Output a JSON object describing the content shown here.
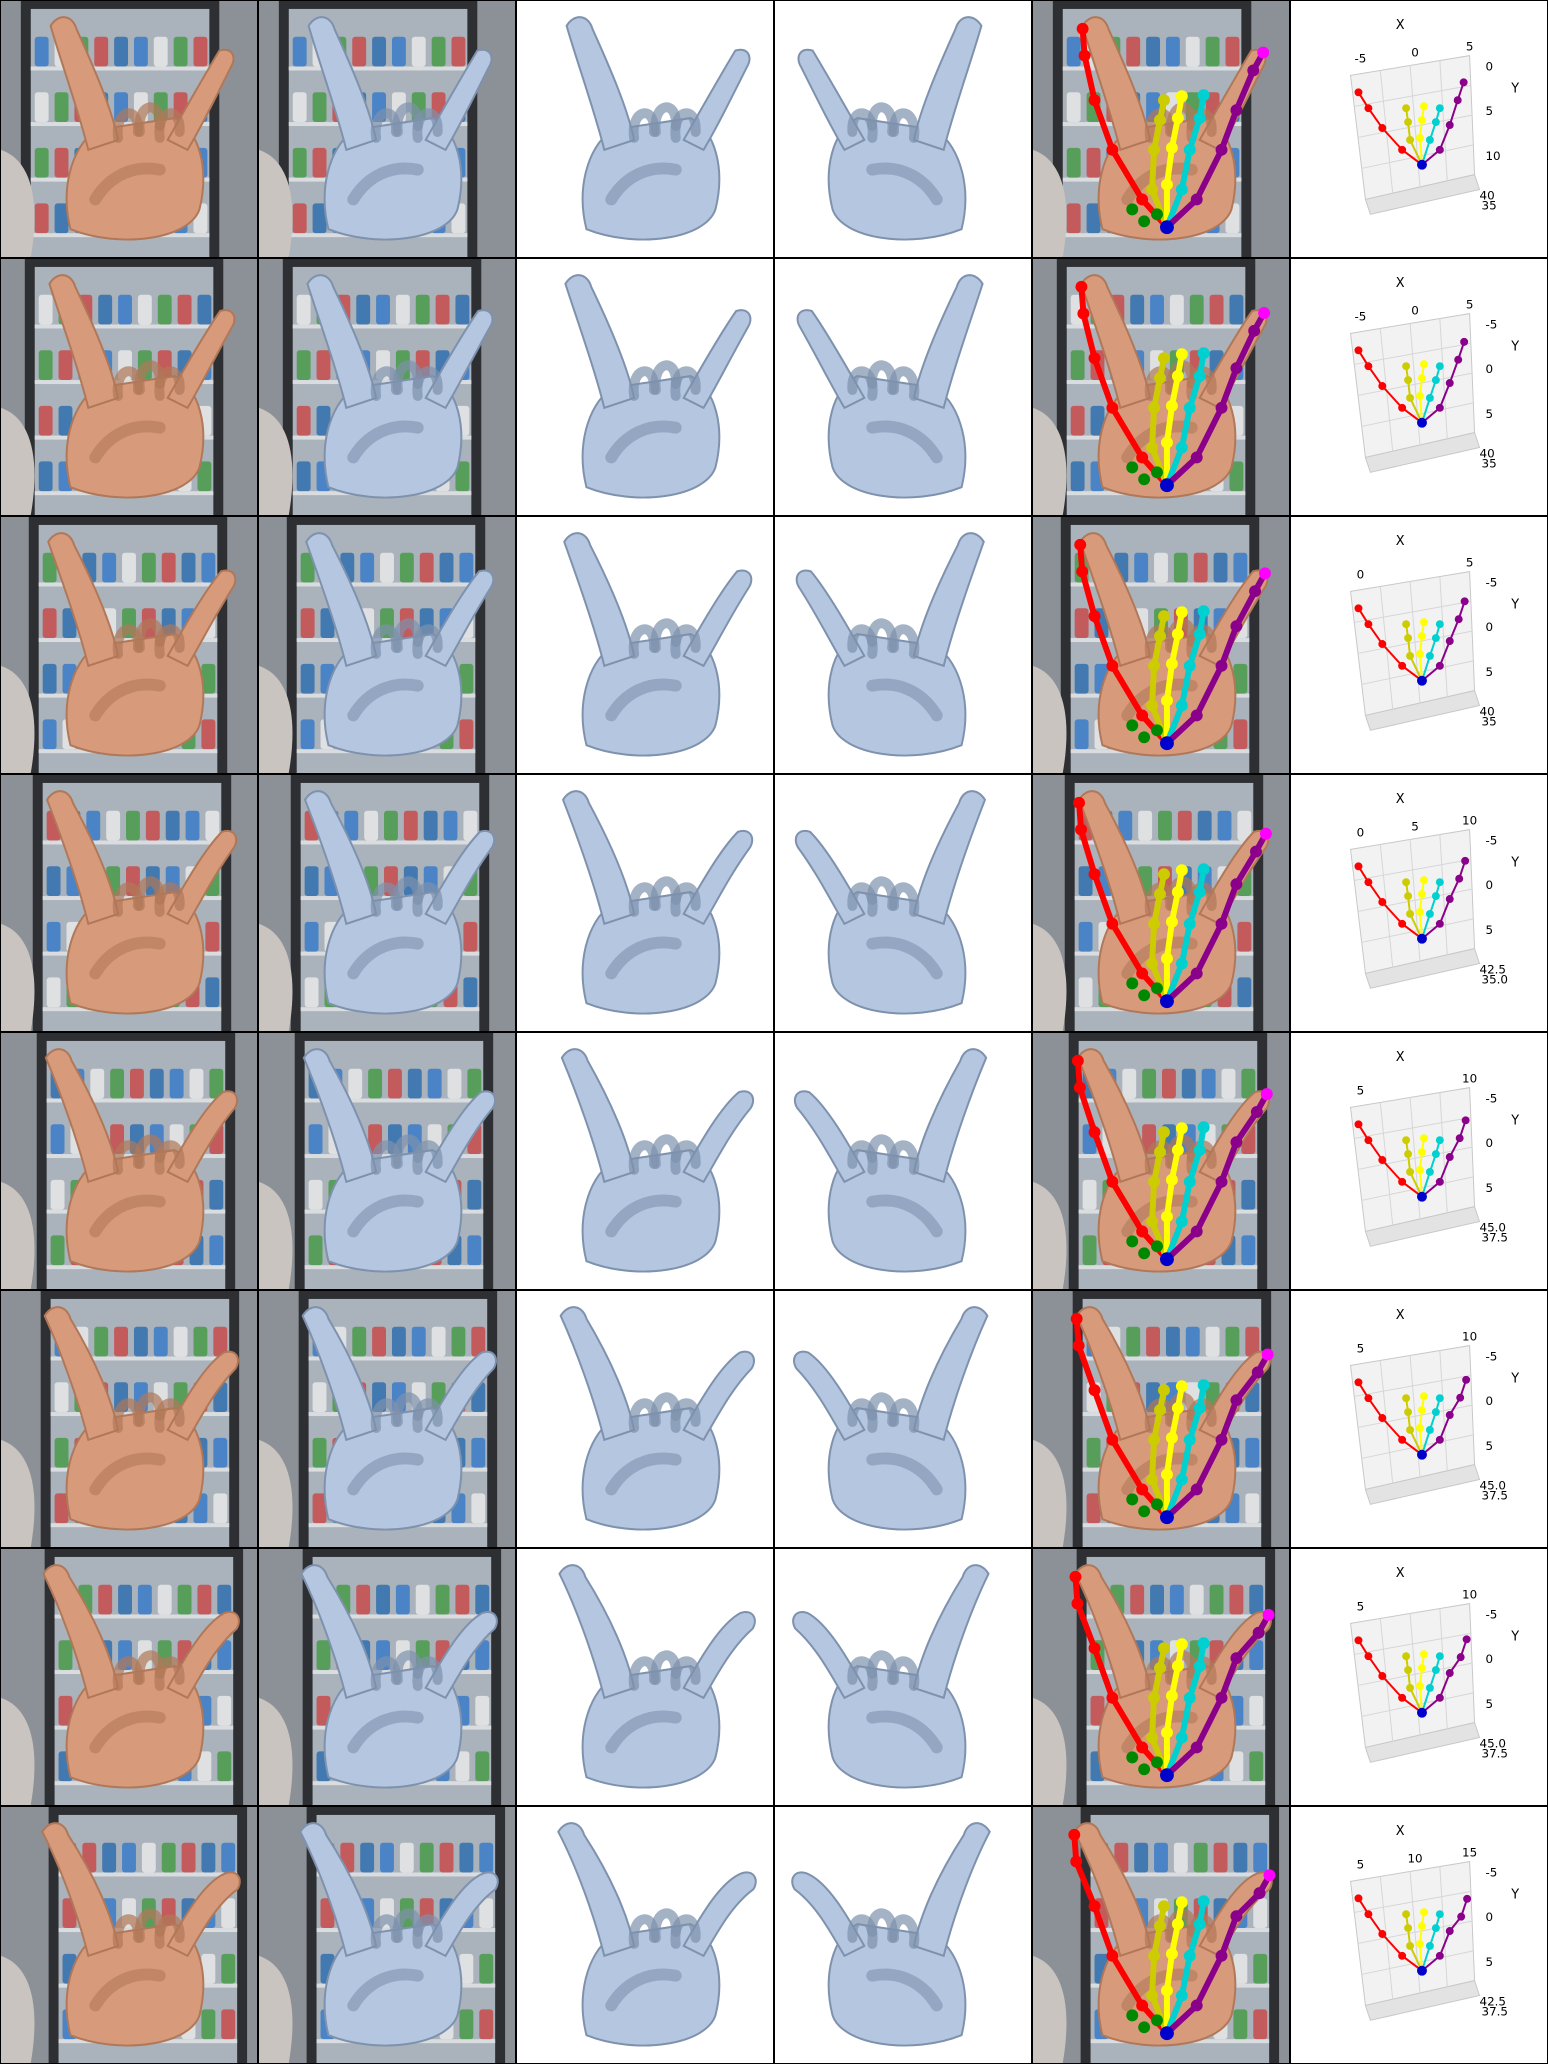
{
  "columns": [
    {
      "kind": "photo"
    },
    {
      "kind": "mesh-overlay"
    },
    {
      "kind": "mesh-front"
    },
    {
      "kind": "mesh-side"
    },
    {
      "kind": "skeleton-overlay"
    },
    {
      "kind": "plot3d"
    }
  ],
  "colors": {
    "mesh": "#b4c6e0",
    "mesh_edge": "#7e91ad",
    "skin": "#d79b7c",
    "background_shelf": "#6f7a82",
    "fingers": {
      "thumb": "#ff0000",
      "index": "#cccc00",
      "middle": "#ffff00",
      "ring": "#00d0d0",
      "pinky": "#8a008a",
      "little_tip": "#ff00ff",
      "palm": "#008800",
      "wrist": "#0000cc"
    }
  },
  "rows": [
    {
      "plot": {
        "x_label": "X",
        "y_label": "Y",
        "x_ticks": [
          "-5",
          "0",
          "5"
        ],
        "y_ticks": [
          "0",
          "5",
          "10"
        ],
        "z_ticks": [
          "40",
          "35"
        ]
      }
    },
    {
      "plot": {
        "x_label": "X",
        "y_label": "Y",
        "x_ticks": [
          "-5",
          "0",
          "5"
        ],
        "y_ticks": [
          "-5",
          "0",
          "5"
        ],
        "z_ticks": [
          "40",
          "35"
        ]
      }
    },
    {
      "plot": {
        "x_label": "X",
        "y_label": "Y",
        "x_ticks": [
          "0",
          "5"
        ],
        "y_ticks": [
          "-5",
          "0",
          "5"
        ],
        "z_ticks": [
          "40",
          "35"
        ]
      }
    },
    {
      "plot": {
        "x_label": "X",
        "y_label": "Y",
        "x_ticks": [
          "0",
          "5",
          "10"
        ],
        "y_ticks": [
          "-5",
          "0",
          "5"
        ],
        "z_ticks": [
          "42.5",
          "35.0"
        ]
      }
    },
    {
      "plot": {
        "x_label": "X",
        "y_label": "Y",
        "x_ticks": [
          "5",
          "10"
        ],
        "y_ticks": [
          "-5",
          "0",
          "5"
        ],
        "z_ticks": [
          "45.0",
          "37.5"
        ]
      }
    },
    {
      "plot": {
        "x_label": "X",
        "y_label": "Y",
        "x_ticks": [
          "5",
          "10"
        ],
        "y_ticks": [
          "-5",
          "0",
          "5"
        ],
        "z_ticks": [
          "45.0",
          "37.5"
        ]
      }
    },
    {
      "plot": {
        "x_label": "X",
        "y_label": "Y",
        "x_ticks": [
          "5",
          "10"
        ],
        "y_ticks": [
          "-5",
          "0",
          "5"
        ],
        "z_ticks": [
          "45.0",
          "37.5"
        ]
      }
    },
    {
      "plot": {
        "x_label": "X",
        "y_label": "Y",
        "x_ticks": [
          "5",
          "10",
          "15"
        ],
        "y_ticks": [
          "-5",
          "0",
          "5"
        ],
        "z_ticks": [
          "42.5",
          "37.5"
        ]
      }
    }
  ]
}
